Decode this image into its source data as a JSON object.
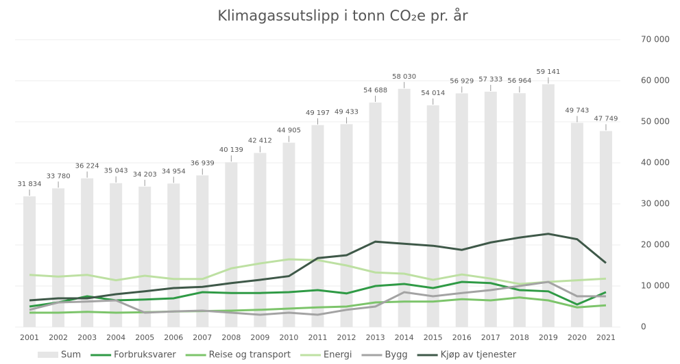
{
  "chart_data": {
    "type": "bar",
    "title": "Klimagassutslipp i tonn CO₂e pr. år",
    "categories": [
      "2001",
      "2002",
      "2003",
      "2004",
      "2005",
      "2006",
      "2007",
      "2008",
      "2009",
      "2010",
      "2011",
      "2012",
      "2013",
      "2014",
      "2015",
      "2016",
      "2017",
      "2018",
      "2019",
      "2020",
      "2021"
    ],
    "series": [
      {
        "name": "Sum",
        "type": "bar",
        "color": "#e6e6e6",
        "values": [
          31834,
          33780,
          36224,
          35043,
          34203,
          34954,
          36939,
          40139,
          42412,
          44905,
          49197,
          49433,
          54688,
          58030,
          54014,
          56929,
          57333,
          56964,
          59141,
          49743,
          47749
        ],
        "value_labels": [
          "31 834",
          "33 780",
          "36 224",
          "35 043",
          "34 203",
          "34 954",
          "36 939",
          "40 139",
          "42 412",
          "44 905",
          "49 197",
          "49 433",
          "54 688",
          "58 030",
          "54 014",
          "56 929",
          "57 333",
          "56 964",
          "59 141",
          "49 743",
          "47 749"
        ]
      },
      {
        "name": "Forbruksvarer",
        "type": "line",
        "color": "#2f9a45",
        "values": [
          5000,
          6000,
          7500,
          6500,
          6700,
          7000,
          8500,
          8300,
          8300,
          8500,
          9000,
          8200,
          10000,
          10500,
          9500,
          11000,
          10700,
          9000,
          8700,
          5500,
          8500
        ]
      },
      {
        "name": "Reise og transport",
        "type": "line",
        "color": "#7cc46a",
        "values": [
          3500,
          3500,
          3700,
          3500,
          3600,
          3800,
          3900,
          4000,
          4200,
          4500,
          4800,
          5000,
          6000,
          6200,
          6200,
          6800,
          6500,
          7200,
          6500,
          4800,
          5300
        ]
      },
      {
        "name": "Energi",
        "type": "line",
        "color": "#bde0a2",
        "values": [
          12700,
          12300,
          12700,
          11400,
          12500,
          11700,
          11700,
          14300,
          15500,
          16500,
          16300,
          15000,
          13300,
          13000,
          11500,
          12800,
          11800,
          10500,
          11000,
          11400,
          11800
        ]
      },
      {
        "name": "Bygg",
        "type": "line",
        "color": "#a3a3a3",
        "values": [
          4200,
          6000,
          6200,
          6500,
          3500,
          3800,
          4000,
          3500,
          3000,
          3500,
          3000,
          4200,
          5000,
          8500,
          7500,
          8300,
          9000,
          10000,
          11000,
          7500,
          7500
        ]
      },
      {
        "name": "Kjøp av tjenester",
        "type": "line",
        "color": "#3e5848",
        "values": [
          6500,
          7000,
          7000,
          8000,
          8700,
          9500,
          9800,
          10700,
          11500,
          12400,
          16800,
          17500,
          20800,
          20300,
          19800,
          18800,
          20600,
          21800,
          22700,
          21400,
          15600
        ]
      }
    ],
    "ylim": [
      0,
      70000
    ],
    "yticks": [
      0,
      {
        "value": 10000,
        "label": "10 000"
      },
      {
        "value": 20000,
        "label": "20 000"
      },
      {
        "value": 30000,
        "label": "30 000"
      },
      {
        "value": 40000,
        "label": "40 000"
      },
      {
        "value": 50000,
        "label": "50 000"
      },
      {
        "value": 60000,
        "label": "60 000"
      },
      {
        "value": 70000,
        "label": "70 000"
      }
    ],
    "grid": true,
    "legend": "bottom"
  }
}
